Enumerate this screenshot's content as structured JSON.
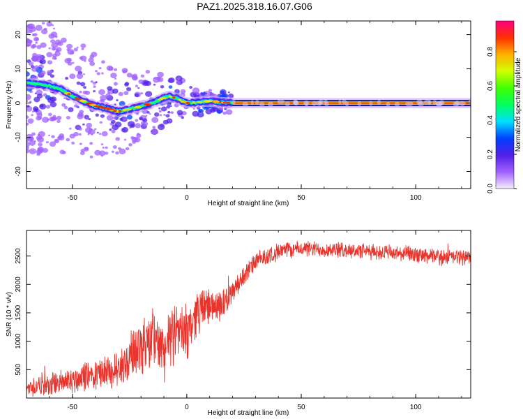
{
  "title": "PAZ1.2025.318.16.07.G06",
  "chart_data": [
    {
      "type": "heatmap",
      "name": "spectrogram",
      "xlabel": "Height of straight line (km)",
      "ylabel": "Frequency (Hz)",
      "xlim": [
        -70,
        124
      ],
      "ylim": [
        -25,
        24
      ],
      "xticks": [
        -50,
        0,
        50,
        100
      ],
      "xtick_labels": [
        "-50",
        "0",
        "50",
        "100"
      ],
      "yticks": [
        -20,
        -10,
        0,
        10,
        20
      ],
      "ytick_labels": [
        "-20",
        "-10",
        "0",
        "10",
        "20"
      ],
      "ridge": {
        "x": [
          -70,
          -65,
          -60,
          -55,
          -50,
          -45,
          -40,
          -35,
          -30,
          -25,
          -20,
          -15,
          -10,
          -8,
          -5,
          0,
          5,
          10,
          15,
          20,
          124
        ],
        "y": [
          6,
          5.5,
          5,
          4,
          2,
          0.5,
          -0.8,
          -1.5,
          -2.5,
          -1.8,
          -1,
          0,
          1.5,
          2,
          1.5,
          0,
          0.2,
          0.6,
          0.2,
          0,
          0
        ]
      },
      "colorbar": {
        "label": "Normalized spectral amplitude",
        "ticks": [
          0.0,
          0.2,
          0.4,
          0.6,
          0.8
        ],
        "tick_labels": [
          "0.0",
          "0.2",
          "0.4",
          "0.6",
          "0.8"
        ],
        "range": [
          0,
          0.98
        ],
        "colors": [
          "#f5eeff",
          "#a060ff",
          "#5020e8",
          "#0040ff",
          "#00e0ff",
          "#00ff60",
          "#40ff00",
          "#d0ff00",
          "#ffb000",
          "#ff3000",
          "#ff0080"
        ]
      }
    },
    {
      "type": "line",
      "name": "snr",
      "xlabel": "Height of straight line (km)",
      "ylabel": "SNR (10 * v/v)",
      "xlim": [
        -70,
        124
      ],
      "ylim": [
        0,
        2950
      ],
      "xticks": [
        -50,
        0,
        50,
        100
      ],
      "xtick_labels": [
        "-50",
        "0",
        "50",
        "100"
      ],
      "yticks": [
        500,
        1000,
        1500,
        2000,
        2500
      ],
      "ytick_labels": [
        "500",
        "1000",
        "1500",
        "2000",
        "2500"
      ],
      "color": "#e8342c",
      "trend": {
        "x": [
          -70,
          -60,
          -50,
          -40,
          -30,
          -25,
          -20,
          -15,
          -10,
          -5,
          0,
          5,
          10,
          15,
          20,
          25,
          30,
          40,
          50,
          70,
          90,
          110,
          124
        ],
        "y": [
          180,
          230,
          320,
          420,
          480,
          700,
          950,
          1050,
          850,
          1150,
          1150,
          1550,
          1620,
          1650,
          1850,
          2150,
          2400,
          2580,
          2630,
          2600,
          2550,
          2480,
          2480
        ]
      },
      "noise": {
        "x": [
          -70,
          -50,
          -30,
          -20,
          -10,
          0,
          10,
          20,
          30,
          50,
          124
        ],
        "amplitude": [
          150,
          230,
          300,
          500,
          500,
          450,
          300,
          200,
          150,
          130,
          130
        ]
      }
    }
  ]
}
